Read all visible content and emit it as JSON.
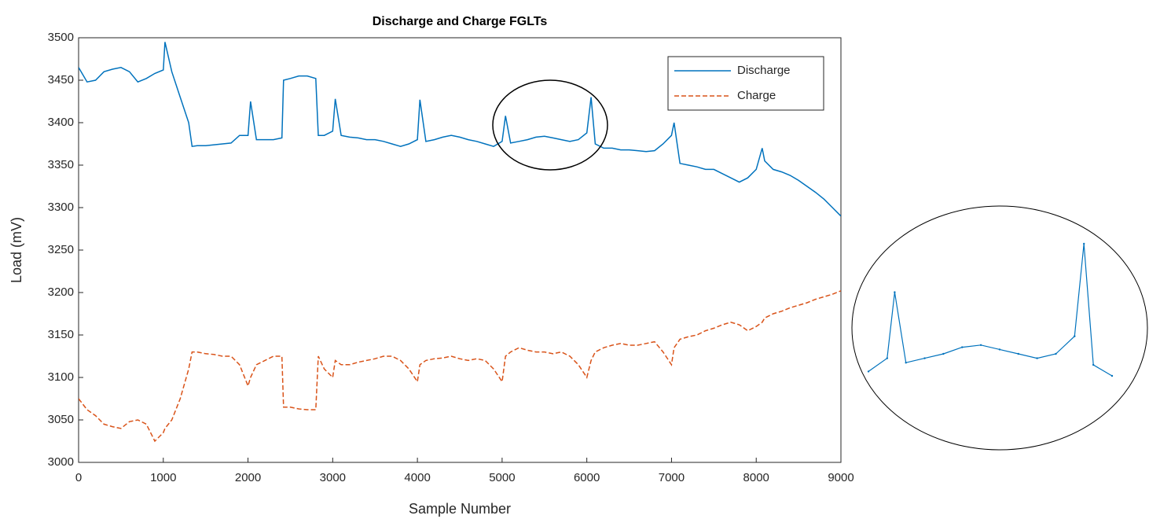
{
  "chart_data": {
    "type": "line",
    "title": "Discharge and Charge FGLTs",
    "x_label": "Sample Number",
    "y_label": "Load (mV)",
    "x": [
      0,
      100,
      200,
      300,
      400,
      500,
      600,
      700,
      800,
      900,
      1000,
      1020,
      1100,
      1200,
      1300,
      1340,
      1400,
      1500,
      1600,
      1700,
      1800,
      1900,
      2000,
      2030,
      2100,
      2200,
      2300,
      2400,
      2420,
      2500,
      2600,
      2700,
      2800,
      2830,
      2900,
      3000,
      3030,
      3100,
      3200,
      3300,
      3400,
      3500,
      3600,
      3700,
      3800,
      3900,
      4000,
      4030,
      4100,
      4200,
      4300,
      4400,
      4500,
      4600,
      4700,
      4800,
      4900,
      5000,
      5040,
      5100,
      5200,
      5300,
      5400,
      5500,
      5600,
      5700,
      5800,
      5900,
      6000,
      6050,
      6100,
      6200,
      6300,
      6400,
      6500,
      6600,
      6700,
      6800,
      6900,
      7000,
      7030,
      7100,
      7200,
      7300,
      7400,
      7500,
      7600,
      7700,
      7800,
      7900,
      8000,
      8070,
      8100,
      8200,
      8300,
      8400,
      8500,
      8600,
      8700,
      8800,
      8900,
      9000
    ],
    "series": [
      {
        "name": "Discharge",
        "color": "#0072bd",
        "line_style": "solid",
        "values": [
          3465,
          3448,
          3450,
          3460,
          3463,
          3465,
          3460,
          3448,
          3452,
          3458,
          3462,
          3495,
          3460,
          3430,
          3400,
          3372,
          3373,
          3373,
          3374,
          3375,
          3376,
          3385,
          3385,
          3425,
          3380,
          3380,
          3380,
          3382,
          3450,
          3452,
          3455,
          3455,
          3452,
          3385,
          3385,
          3390,
          3428,
          3385,
          3383,
          3382,
          3380,
          3380,
          3378,
          3375,
          3372,
          3375,
          3380,
          3427,
          3378,
          3380,
          3383,
          3385,
          3383,
          3380,
          3378,
          3375,
          3372,
          3378,
          3408,
          3376,
          3378,
          3380,
          3383,
          3384,
          3382,
          3380,
          3378,
          3380,
          3388,
          3430,
          3375,
          3370,
          3370,
          3368,
          3368,
          3367,
          3366,
          3367,
          3375,
          3385,
          3400,
          3352,
          3350,
          3348,
          3345,
          3345,
          3340,
          3335,
          3330,
          3335,
          3345,
          3370,
          3355,
          3345,
          3342,
          3338,
          3332,
          3325,
          3318,
          3310,
          3300,
          3290
        ]
      },
      {
        "name": "Charge",
        "color": "#d95319",
        "line_style": "dashed",
        "values": [
          3075,
          3062,
          3055,
          3045,
          3042,
          3040,
          3048,
          3050,
          3045,
          3025,
          3035,
          3040,
          3050,
          3075,
          3110,
          3130,
          3130,
          3128,
          3127,
          3125,
          3125,
          3115,
          3090,
          3100,
          3115,
          3120,
          3125,
          3125,
          3065,
          3065,
          3063,
          3062,
          3062,
          3125,
          3110,
          3100,
          3120,
          3115,
          3115,
          3118,
          3120,
          3122,
          3125,
          3125,
          3120,
          3110,
          3095,
          3115,
          3120,
          3122,
          3123,
          3125,
          3122,
          3120,
          3122,
          3120,
          3110,
          3095,
          3125,
          3130,
          3135,
          3132,
          3130,
          3130,
          3128,
          3130,
          3125,
          3115,
          3100,
          3120,
          3130,
          3135,
          3138,
          3140,
          3138,
          3138,
          3140,
          3142,
          3130,
          3115,
          3135,
          3145,
          3148,
          3150,
          3155,
          3158,
          3162,
          3165,
          3162,
          3155,
          3160,
          3165,
          3170,
          3175,
          3178,
          3182,
          3185,
          3188,
          3192,
          3195,
          3198,
          3202
        ]
      }
    ],
    "xlim": [
      0,
      9000
    ],
    "xticks": [
      0,
      1000,
      2000,
      3000,
      4000,
      5000,
      6000,
      7000,
      8000,
      9000
    ],
    "ylim": [
      3000,
      3500
    ],
    "yticks": [
      3000,
      3050,
      3100,
      3150,
      3200,
      3250,
      3300,
      3350,
      3400,
      3450,
      3500
    ],
    "legend": "top-right",
    "grid": false,
    "zoom_xlim": [
      4900,
      6200
    ]
  }
}
